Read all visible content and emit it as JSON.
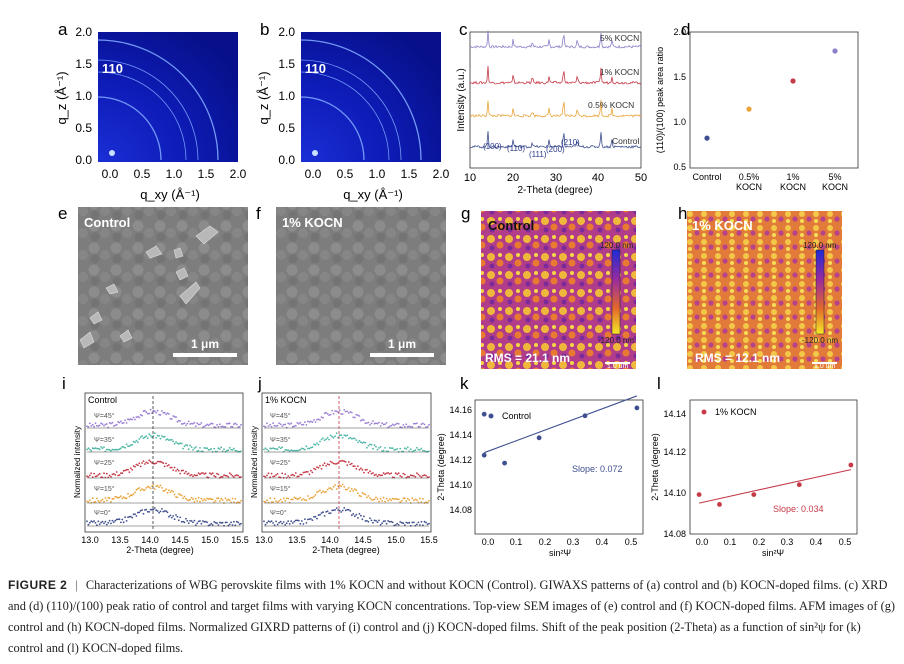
{
  "panels": {
    "a": {
      "letter": "a",
      "label": "110",
      "yaxis": "q_z (Å⁻¹)",
      "xaxis": "q_xy (Å⁻¹)",
      "xticks": [
        "0.0",
        "0.5",
        "1.0",
        "1.5",
        "2.0"
      ],
      "yticks": [
        "0.0",
        "0.5",
        "1.0",
        "1.5",
        "2.0"
      ]
    },
    "b": {
      "letter": "b",
      "label": "110",
      "yaxis": "q_z (Å⁻¹)",
      "xaxis": "q_xy (Å⁻¹)",
      "xticks": [
        "0.0",
        "0.5",
        "1.0",
        "1.5",
        "2.0"
      ],
      "yticks": [
        "0.0",
        "0.5",
        "1.0",
        "1.5",
        "2.0"
      ]
    },
    "c": {
      "letter": "c",
      "ylabel": "Intensity (a.u.)",
      "xlabel": "2-Theta (degree)",
      "xticks": [
        "10",
        "20",
        "30",
        "40",
        "50"
      ],
      "traces": [
        {
          "name": "5% KOCN",
          "color": "#8e7fc8"
        },
        {
          "name": "1% KOCN",
          "color": "#c63a48"
        },
        {
          "name": "0.5% KOCN",
          "color": "#e9a43a"
        },
        {
          "name": "Control",
          "color": "#3f4f8f"
        }
      ],
      "peaks": [
        "(100)",
        "(110)",
        "(111)",
        "(200)",
        "(210)"
      ]
    },
    "d": {
      "letter": "d",
      "ylabel": "(110)/(100) peak area ratio",
      "yticks": [
        "0.5",
        "1.0",
        "1.5",
        "2.0"
      ],
      "categories": [
        "Control",
        "0.5%\nKOCN",
        "1%\nKOCN",
        "5%\nKOCN"
      ],
      "values": [
        0.83,
        1.15,
        1.46,
        1.79
      ],
      "colors": [
        "#3f4f8f",
        "#e9a43a",
        "#c63a48",
        "#8e7fc8"
      ]
    },
    "e": {
      "letter": "e",
      "title": "Control",
      "scale": "1 μm"
    },
    "f": {
      "letter": "f",
      "title": "1% KOCN",
      "scale": "1 μm"
    },
    "g": {
      "letter": "g",
      "title": "Control",
      "rms": "RMS = 21.1 nm",
      "cbar_top": "120.0 nm",
      "cbar_bottom": "-120.0 nm",
      "scale": "1.0 um"
    },
    "h": {
      "letter": "h",
      "title": "1% KOCN",
      "rms": "RMS = 12.1 nm",
      "cbar_top": "120.0 nm",
      "cbar_bottom": "-120.0 nm",
      "scale": "1.0 um"
    },
    "i": {
      "letter": "i",
      "title": "Control",
      "ylabel": "Normalized intensity",
      "xlabel": "2-Theta (degree)",
      "xticks": [
        "13.0",
        "13.5",
        "14.0",
        "14.5",
        "15.0",
        "15.5"
      ],
      "series": [
        "Ψ=45°",
        "Ψ=35°",
        "Ψ=25°",
        "Ψ=15°",
        "Ψ=0°"
      ]
    },
    "j": {
      "letter": "j",
      "title": "1% KOCN",
      "ylabel": "Normalized intensity",
      "xlabel": "2-Theta (degree)",
      "xticks": [
        "13.0",
        "13.5",
        "14.0",
        "14.5",
        "15.0",
        "15.5"
      ],
      "series": [
        "Ψ=45°",
        "Ψ=35°",
        "Ψ=25°",
        "Ψ=15°",
        "Ψ=0°"
      ]
    },
    "k": {
      "letter": "k",
      "legend": "Control",
      "slope": "Slope: 0.072",
      "ylabel": "2-Theta (degree)",
      "xlabel": "sin²Ψ",
      "xticks": [
        "0.0",
        "0.1",
        "0.2",
        "0.3",
        "0.4",
        "0.5"
      ],
      "yticks": [
        "14.08",
        "14.10",
        "14.12",
        "14.14",
        "14.16"
      ]
    },
    "l": {
      "letter": "l",
      "legend": "1% KOCN",
      "slope": "Slope: 0.034",
      "ylabel": "2-Theta (degree)",
      "xlabel": "sin²Ψ",
      "xticks": [
        "0.0",
        "0.1",
        "0.2",
        "0.3",
        "0.4",
        "0.5"
      ],
      "yticks": [
        "14.08",
        "14.10",
        "14.12",
        "14.14"
      ]
    }
  },
  "chart_data": [
    {
      "type": "scatter",
      "panel": "d",
      "ylabel": "(110)/(100) peak area ratio",
      "ylim": [
        0.5,
        2.0
      ],
      "categories": [
        "Control",
        "0.5% KOCN",
        "1% KOCN",
        "5% KOCN"
      ],
      "values": [
        0.83,
        1.15,
        1.46,
        1.79
      ]
    },
    {
      "type": "scatter",
      "panel": "k",
      "xlabel": "sin²Ψ",
      "ylabel": "2-Theta (degree)",
      "xlim": [
        -0.03,
        0.52
      ],
      "ylim": [
        14.08,
        14.165
      ],
      "x": [
        0.0,
        0.0,
        0.067,
        0.18,
        0.33,
        0.5
      ],
      "y": [
        14.156,
        14.13,
        14.125,
        14.141,
        14.155,
        14.16
      ],
      "fit_slope": 0.072
    },
    {
      "type": "scatter",
      "panel": "l",
      "xlabel": "sin²Ψ",
      "ylabel": "2-Theta (degree)",
      "xlim": [
        -0.03,
        0.52
      ],
      "ylim": [
        14.08,
        14.148
      ],
      "x": [
        0.0,
        0.067,
        0.18,
        0.33,
        0.5
      ],
      "y": [
        14.1,
        14.095,
        14.1,
        14.105,
        14.115
      ],
      "fit_slope": 0.034
    }
  ],
  "caption": {
    "label": "FIGURE 2",
    "text": "Characterizations of WBG perovskite films with 1% KOCN and without KOCN (Control). GIWAXS patterns of (a) control and (b) KOCN-doped films. (c) XRD and (d) (110)/(100) peak ratio of control and target films with varying KOCN concentrations. Top-view SEM images of (e) control and (f) KOCN-doped films. AFM images of (g) control and (h) KOCN-doped films. Normalized GIXRD patterns of (i) control and (j) KOCN-doped films. Shift of the peak position (2-Theta) as a function of sin²ψ for (k) control and (l) KOCN-doped films."
  }
}
